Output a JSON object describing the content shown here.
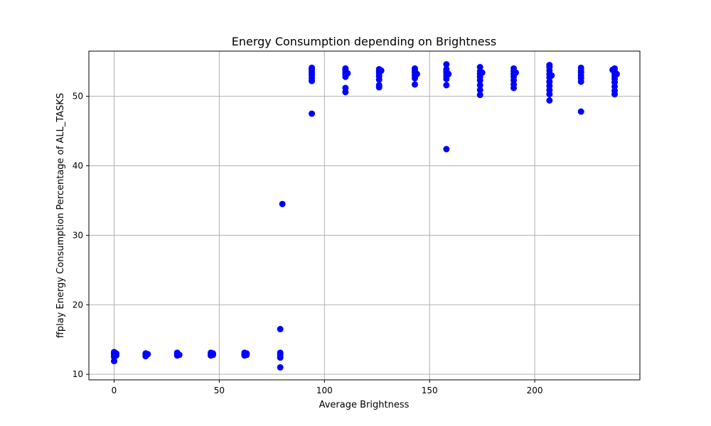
{
  "chart_data": {
    "type": "scatter",
    "title": "Energy Consumption depending on Brightness",
    "xlabel": "Average Brightness",
    "ylabel": "ffplay Energy Consumption Percentage of ALL_TASKS",
    "xlim": [
      -12,
      250
    ],
    "ylim": [
      9.2,
      56.5
    ],
    "xticks": [
      0,
      50,
      100,
      150,
      200
    ],
    "yticks": [
      10,
      20,
      30,
      40,
      50
    ],
    "grid": true,
    "marker_color": "#0000ff",
    "series": [
      {
        "points": [
          [
            0,
            11.9
          ],
          [
            0,
            12.5
          ],
          [
            0,
            12.8
          ],
          [
            0,
            13.0
          ],
          [
            0,
            13.2
          ],
          [
            1,
            12.7
          ],
          [
            1,
            13.0
          ],
          [
            15,
            12.6
          ],
          [
            15,
            12.8
          ],
          [
            15,
            13.0
          ],
          [
            16,
            12.9
          ],
          [
            30,
            12.7
          ],
          [
            30,
            12.9
          ],
          [
            30,
            13.1
          ],
          [
            31,
            12.8
          ],
          [
            46,
            12.7
          ],
          [
            46,
            12.9
          ],
          [
            46,
            13.1
          ],
          [
            47,
            12.8
          ],
          [
            47,
            13.0
          ],
          [
            62,
            12.7
          ],
          [
            62,
            12.9
          ],
          [
            62,
            13.1
          ],
          [
            63,
            12.8
          ],
          [
            63,
            13.0
          ],
          [
            79,
            11.0
          ],
          [
            79,
            12.4
          ],
          [
            79,
            12.8
          ],
          [
            79,
            13.1
          ],
          [
            79,
            16.5
          ],
          [
            80,
            34.5
          ],
          [
            94,
            47.5
          ],
          [
            94,
            52.2
          ],
          [
            94,
            52.6
          ],
          [
            94,
            53.0
          ],
          [
            94,
            53.3
          ],
          [
            94,
            53.6
          ],
          [
            94,
            53.9
          ],
          [
            94,
            54.1
          ],
          [
            110,
            50.6
          ],
          [
            110,
            51.2
          ],
          [
            110,
            52.8
          ],
          [
            110,
            53.2
          ],
          [
            110,
            53.5
          ],
          [
            110,
            53.8
          ],
          [
            110,
            54.0
          ],
          [
            111,
            53.3
          ],
          [
            126,
            51.3
          ],
          [
            126,
            51.6
          ],
          [
            126,
            52.4
          ],
          [
            126,
            52.9
          ],
          [
            126,
            53.3
          ],
          [
            126,
            53.6
          ],
          [
            126,
            53.9
          ],
          [
            127,
            53.7
          ],
          [
            143,
            51.7
          ],
          [
            143,
            52.6
          ],
          [
            143,
            53.0
          ],
          [
            143,
            53.4
          ],
          [
            143,
            53.7
          ],
          [
            143,
            54.0
          ],
          [
            144,
            53.2
          ],
          [
            158,
            42.4
          ],
          [
            158,
            51.6
          ],
          [
            158,
            52.5
          ],
          [
            158,
            52.9
          ],
          [
            158,
            53.3
          ],
          [
            158,
            53.6
          ],
          [
            158,
            53.9
          ],
          [
            158,
            54.6
          ],
          [
            159,
            53.2
          ],
          [
            174,
            50.2
          ],
          [
            174,
            50.9
          ],
          [
            174,
            51.6
          ],
          [
            174,
            52.3
          ],
          [
            174,
            52.8
          ],
          [
            174,
            53.2
          ],
          [
            174,
            53.6
          ],
          [
            174,
            54.2
          ],
          [
            175,
            53.4
          ],
          [
            190,
            51.2
          ],
          [
            190,
            51.7
          ],
          [
            190,
            52.3
          ],
          [
            190,
            52.8
          ],
          [
            190,
            53.2
          ],
          [
            190,
            53.6
          ],
          [
            190,
            54.0
          ],
          [
            191,
            53.4
          ],
          [
            207,
            49.4
          ],
          [
            207,
            50.3
          ],
          [
            207,
            50.9
          ],
          [
            207,
            51.5
          ],
          [
            207,
            52.1
          ],
          [
            207,
            52.7
          ],
          [
            207,
            53.2
          ],
          [
            207,
            53.7
          ],
          [
            207,
            54.2
          ],
          [
            207,
            54.5
          ],
          [
            208,
            53.0
          ],
          [
            222,
            47.8
          ],
          [
            222,
            52.1
          ],
          [
            222,
            52.6
          ],
          [
            222,
            53.0
          ],
          [
            222,
            53.4
          ],
          [
            222,
            53.7
          ],
          [
            222,
            54.1
          ],
          [
            238,
            50.3
          ],
          [
            238,
            50.8
          ],
          [
            238,
            51.4
          ],
          [
            238,
            52.0
          ],
          [
            238,
            52.5
          ],
          [
            238,
            52.9
          ],
          [
            238,
            53.3
          ],
          [
            238,
            53.6
          ],
          [
            238,
            54.0
          ],
          [
            239,
            53.2
          ],
          [
            237,
            53.8
          ]
        ]
      }
    ]
  }
}
